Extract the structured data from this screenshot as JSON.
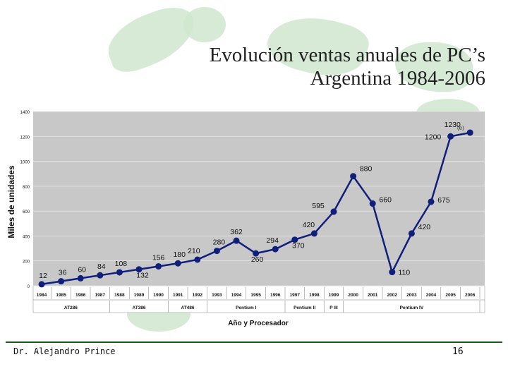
{
  "title_lines": [
    "Evolución ventas anuales de PC’s",
    "Argentina 1984-2006"
  ],
  "footer": {
    "author": "Dr. Alejandro Prince",
    "page": "16"
  },
  "colors": {
    "plot_bg": "#c8c8c8",
    "line": "#0f1f7a",
    "point": "#0f1f7a",
    "background_art": "#cfe6cf"
  },
  "chart_data": {
    "type": "line",
    "xlabel": "Año y Procesador",
    "ylabel": "Miles de unidades",
    "ylim": [
      0,
      1400
    ],
    "yticks": [
      0,
      200,
      400,
      600,
      800,
      1000,
      1200,
      1400
    ],
    "grid": true,
    "legend": "none",
    "x": [
      "1984",
      "1985",
      "1986",
      "1987",
      "1988",
      "1989",
      "1990",
      "1991",
      "1992",
      "1993",
      "1994",
      "1995",
      "1996",
      "1997",
      "1998",
      "1999",
      "2000",
      "2001",
      "2002",
      "2003",
      "2004",
      "2005",
      "2006"
    ],
    "values": [
      12,
      36,
      60,
      84,
      108,
      132,
      156,
      180,
      210,
      280,
      362,
      260,
      294,
      370,
      420,
      595,
      880,
      660,
      110,
      420,
      675,
      1200,
      1230
    ],
    "value_labels": [
      "12",
      "36",
      "60",
      "84",
      "108",
      "132",
      "156",
      "180",
      "210",
      "280",
      "362",
      "260",
      "294",
      "370",
      "420",
      "595",
      "880",
      "660",
      "110",
      "420",
      "675",
      "1200",
      "1230"
    ],
    "processors": [
      {
        "name": "AT286",
        "from": "1984",
        "to": "1987"
      },
      {
        "name": "AT386",
        "from": "1988",
        "to": "1990"
      },
      {
        "name": "AT486",
        "from": "1991",
        "to": "1992"
      },
      {
        "name": "Pentium I",
        "from": "1993",
        "to": "1996"
      },
      {
        "name": "Pentium II",
        "from": "1997",
        "to": "1998"
      },
      {
        "name": "P III",
        "from": "1999",
        "to": "1999"
      },
      {
        "name": "Pentium IV",
        "from": "2000",
        "to": "2006"
      }
    ],
    "note": "(e)"
  }
}
